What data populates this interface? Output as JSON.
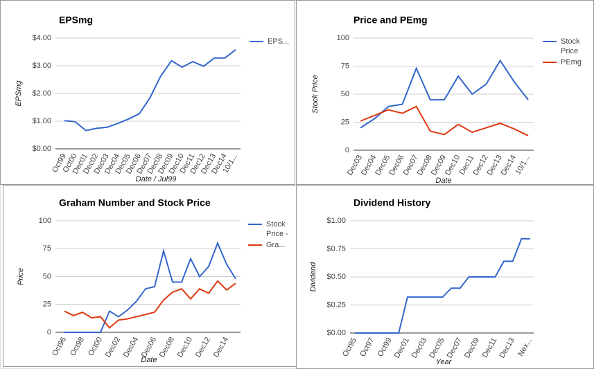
{
  "chart_data": [
    {
      "type": "line",
      "title": "EPSmg",
      "y_label": "EPSmg",
      "x_label": "Date / Jul99",
      "categories": [
        "Oct99",
        "Oct00",
        "Dec01",
        "Dec02",
        "Dec03",
        "Dec04",
        "Dec05",
        "Dec06",
        "Dec07",
        "Dec08",
        "Dec09",
        "Dec10",
        "Dec11",
        "Dec12",
        "Dec13",
        "Dec14",
        "10/1..."
      ],
      "series": [
        {
          "name": "EPS...",
          "color": "#3366cc",
          "values": [
            1.02,
            0.98,
            0.66,
            0.74,
            0.78,
            0.92,
            1.08,
            1.27,
            1.85,
            2.63,
            3.18,
            2.95,
            3.15,
            2.98,
            3.28,
            3.28,
            3.58
          ]
        }
      ],
      "ylim": [
        0,
        4
      ],
      "yticks": [
        {
          "value": 0,
          "label": "$0.00"
        },
        {
          "value": 1,
          "label": "$1.00"
        },
        {
          "value": 2,
          "label": "$2.00"
        },
        {
          "value": 3,
          "label": "$3.00"
        },
        {
          "value": 4,
          "label": "$4.00"
        }
      ],
      "grid": true,
      "legend": "right"
    },
    {
      "type": "line",
      "title": "Price and PEmg",
      "y_label": "Stock Price",
      "x_label": "Date",
      "categories": [
        "Dec03",
        "Dec04",
        "Dec05",
        "Dec06",
        "Dec07",
        "Dec08",
        "Dec09",
        "Dec10",
        "Dec11",
        "Dec12",
        "Dec13",
        "Dec14",
        "10/1..."
      ],
      "series": [
        {
          "name": "Stock Price",
          "color": "#3366cc",
          "values": [
            20,
            28,
            39,
            41,
            73,
            45,
            45,
            66,
            50,
            59,
            80,
            61,
            45
          ]
        },
        {
          "name": "PEmg",
          "color": "#dc3912",
          "values": [
            26,
            31,
            36,
            33,
            39,
            17,
            14,
            23,
            16,
            20,
            24,
            19,
            13
          ]
        }
      ],
      "ylim": [
        0,
        100
      ],
      "yticks": [
        0,
        25,
        50,
        75,
        100
      ],
      "grid": true,
      "legend": "right"
    },
    {
      "type": "line",
      "title": "Graham Number and Stock Price",
      "y_label": "Price",
      "x_label": "Date",
      "categories": [
        "Oct96",
        null,
        "Oct98",
        null,
        "Oct00",
        null,
        "Dec02",
        null,
        "Dec04",
        null,
        "Dec06",
        null,
        "Dec08",
        null,
        "Dec10",
        null,
        "Dec12",
        null,
        "Dec14",
        null
      ],
      "series": [
        {
          "name": "Stock Price -",
          "color": "#3366cc",
          "values": [
            0,
            0,
            0,
            0,
            0,
            19,
            14,
            20,
            28,
            39,
            41,
            73,
            45,
            45,
            66,
            50,
            59,
            80,
            61,
            48
          ]
        },
        {
          "name": "Gra...",
          "color": "#dc3912",
          "values": [
            19,
            15,
            18,
            13,
            14,
            4,
            11,
            12,
            14,
            16,
            18,
            29,
            36,
            39,
            30,
            39,
            35,
            46,
            38,
            44
          ]
        }
      ],
      "ylim": [
        0,
        100
      ],
      "yticks": [
        0,
        25,
        50,
        75,
        100
      ],
      "grid": true,
      "legend": "right"
    },
    {
      "type": "line",
      "title": "Dividend History",
      "y_label": "Dividend",
      "x_label": "Year",
      "categories": [
        "Oct95",
        null,
        "Oct97",
        null,
        "Oct99",
        null,
        "Dec01",
        null,
        "Dec03",
        null,
        "Dec05",
        null,
        "Dec07",
        null,
        "Dec09",
        null,
        "Dec11",
        null,
        "Dec13",
        null,
        "Nex..."
      ],
      "series": [
        {
          "color": "#3366cc",
          "values": [
            0,
            0,
            0,
            0,
            0,
            0,
            0.32,
            0.32,
            0.32,
            0.32,
            0.32,
            0.4,
            0.4,
            0.5,
            0.5,
            0.5,
            0.5,
            0.64,
            0.64,
            0.84,
            0.84
          ]
        }
      ],
      "ylim": [
        0,
        1
      ],
      "yticks": [
        {
          "value": 0,
          "label": "$0.00"
        },
        {
          "value": 0.25,
          "label": "$0.25"
        },
        {
          "value": 0.5,
          "label": "$0.50"
        },
        {
          "value": 0.75,
          "label": "$0.75"
        },
        {
          "value": 1,
          "label": "$1.00"
        }
      ],
      "grid": true
    }
  ]
}
